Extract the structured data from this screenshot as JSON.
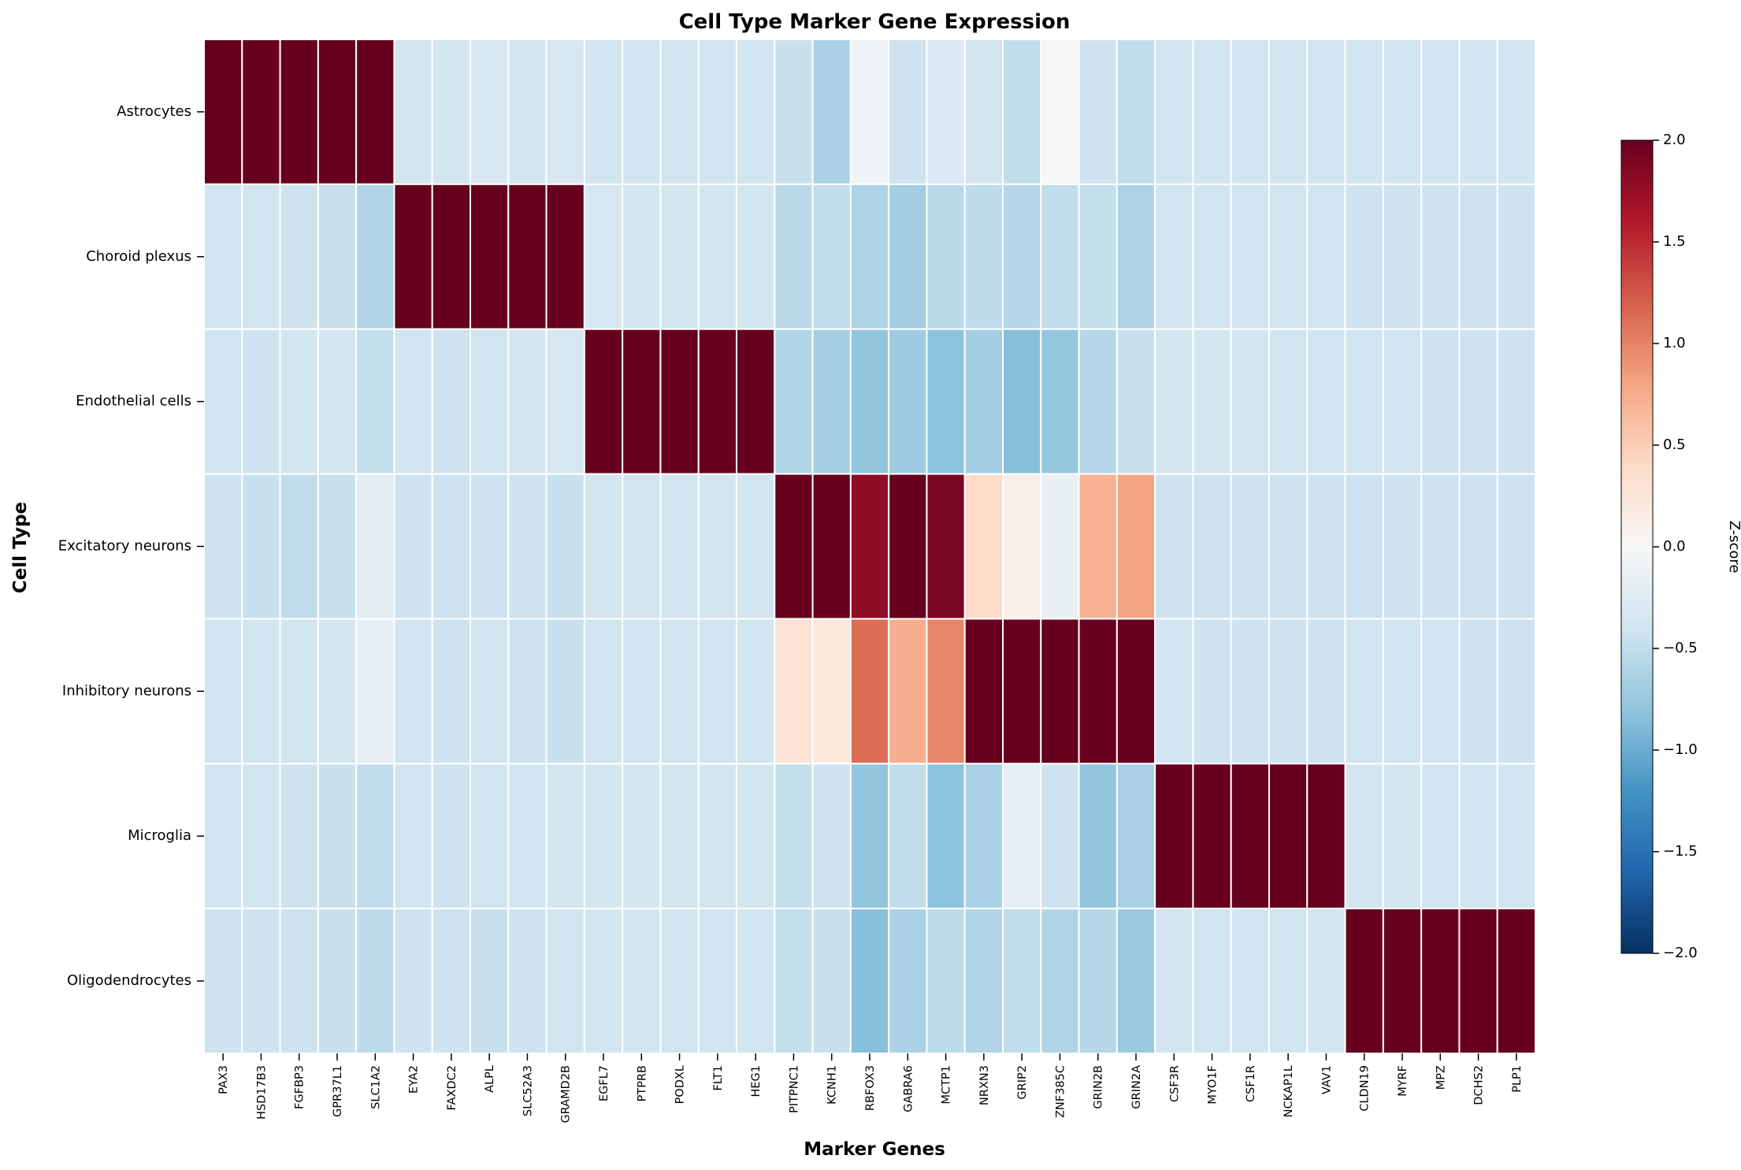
{
  "chart_data": {
    "type": "heatmap",
    "title": "Cell Type Marker Gene Expression",
    "xlabel": "Marker Genes",
    "ylabel": "Cell Type",
    "colorbar_label": "Z-score",
    "colormap": "RdBu_r",
    "vmin": -2.0,
    "vmax": 2.0,
    "colorbar_ticks": [
      "2.0",
      "1.5",
      "1.0",
      "0.5",
      "0.0",
      "−0.5",
      "−1.0",
      "−1.5",
      "−2.0"
    ],
    "colorbar_tick_values": [
      2.0,
      1.5,
      1.0,
      0.5,
      0.0,
      -0.5,
      -1.0,
      -1.5,
      -2.0
    ],
    "rows": [
      "Astrocytes",
      "Choroid plexus",
      "Endothelial cells",
      "Excitatory neurons",
      "Inhibitory neurons",
      "Microglia",
      "Oligodendrocytes"
    ],
    "columns": [
      "PAX3",
      "HSD17B3",
      "FGFBP3",
      "GPR37L1",
      "SLC1A2",
      "EYA2",
      "FAXDC2",
      "ALPL",
      "SLC52A3",
      "GRAMD2B",
      "EGFL7",
      "PTPRB",
      "PODXL",
      "FLT1",
      "HEG1",
      "PITPNC1",
      "KCNH1",
      "RBFOX3",
      "GABRA6",
      "MCTP1",
      "NRXN3",
      "GRIP2",
      "ZNF385C",
      "GRIN2B",
      "GRIN2A",
      "CSF3R",
      "MYO1F",
      "CSF1R",
      "NCKAP1L",
      "VAV1",
      "CLDN19",
      "MYRF",
      "MPZ",
      "DCHS2",
      "PLP1"
    ],
    "values": [
      [
        2.0,
        2.0,
        2.0,
        2.0,
        2.0,
        -0.38,
        -0.38,
        -0.35,
        -0.38,
        -0.35,
        -0.4,
        -0.4,
        -0.4,
        -0.4,
        -0.4,
        -0.45,
        -0.65,
        -0.08,
        -0.42,
        -0.3,
        -0.38,
        -0.5,
        0.02,
        -0.42,
        -0.5,
        -0.4,
        -0.4,
        -0.4,
        -0.4,
        -0.4,
        -0.4,
        -0.4,
        -0.4,
        -0.4,
        -0.4
      ],
      [
        -0.4,
        -0.4,
        -0.42,
        -0.45,
        -0.6,
        2.0,
        2.0,
        2.0,
        2.0,
        2.0,
        -0.35,
        -0.38,
        -0.38,
        -0.38,
        -0.38,
        -0.55,
        -0.5,
        -0.62,
        -0.7,
        -0.55,
        -0.52,
        -0.58,
        -0.5,
        -0.48,
        -0.62,
        -0.4,
        -0.4,
        -0.4,
        -0.4,
        -0.4,
        -0.42,
        -0.42,
        -0.42,
        -0.42,
        -0.42
      ],
      [
        -0.4,
        -0.42,
        -0.38,
        -0.38,
        -0.48,
        -0.4,
        -0.42,
        -0.4,
        -0.38,
        -0.35,
        2.0,
        2.0,
        2.0,
        2.0,
        2.0,
        -0.6,
        -0.68,
        -0.8,
        -0.72,
        -0.82,
        -0.7,
        -0.85,
        -0.78,
        -0.58,
        -0.45,
        -0.38,
        -0.38,
        -0.38,
        -0.4,
        -0.4,
        -0.4,
        -0.4,
        -0.42,
        -0.42,
        -0.42
      ],
      [
        -0.42,
        -0.45,
        -0.5,
        -0.45,
        -0.22,
        -0.42,
        -0.42,
        -0.42,
        -0.42,
        -0.45,
        -0.38,
        -0.38,
        -0.4,
        -0.38,
        -0.38,
        2.0,
        2.0,
        1.78,
        2.0,
        1.9,
        0.38,
        0.12,
        -0.15,
        0.7,
        0.8,
        -0.42,
        -0.42,
        -0.42,
        -0.42,
        -0.42,
        -0.42,
        -0.42,
        -0.42,
        -0.42,
        -0.42
      ],
      [
        -0.4,
        -0.4,
        -0.38,
        -0.38,
        -0.18,
        -0.4,
        -0.42,
        -0.4,
        -0.42,
        -0.45,
        -0.4,
        -0.4,
        -0.4,
        -0.4,
        -0.4,
        0.28,
        0.22,
        1.12,
        0.72,
        0.98,
        2.0,
        2.0,
        2.0,
        2.0,
        2.0,
        -0.4,
        -0.42,
        -0.42,
        -0.42,
        -0.42,
        -0.4,
        -0.4,
        -0.4,
        -0.42,
        -0.42
      ],
      [
        -0.4,
        -0.4,
        -0.42,
        -0.45,
        -0.5,
        -0.4,
        -0.42,
        -0.4,
        -0.4,
        -0.38,
        -0.38,
        -0.38,
        -0.38,
        -0.38,
        -0.38,
        -0.48,
        -0.42,
        -0.8,
        -0.5,
        -0.82,
        -0.65,
        -0.2,
        -0.42,
        -0.8,
        -0.65,
        2.0,
        2.0,
        2.0,
        2.0,
        2.0,
        -0.38,
        -0.38,
        -0.4,
        -0.4,
        -0.4
      ],
      [
        -0.42,
        -0.42,
        -0.42,
        -0.45,
        -0.52,
        -0.42,
        -0.42,
        -0.45,
        -0.42,
        -0.4,
        -0.38,
        -0.38,
        -0.4,
        -0.4,
        -0.4,
        -0.48,
        -0.45,
        -0.85,
        -0.65,
        -0.52,
        -0.6,
        -0.5,
        -0.6,
        -0.58,
        -0.75,
        -0.38,
        -0.4,
        -0.4,
        -0.4,
        -0.38,
        2.0,
        2.0,
        2.0,
        2.0,
        2.0
      ]
    ],
    "grid": false,
    "legend": "colorbar-right"
  }
}
